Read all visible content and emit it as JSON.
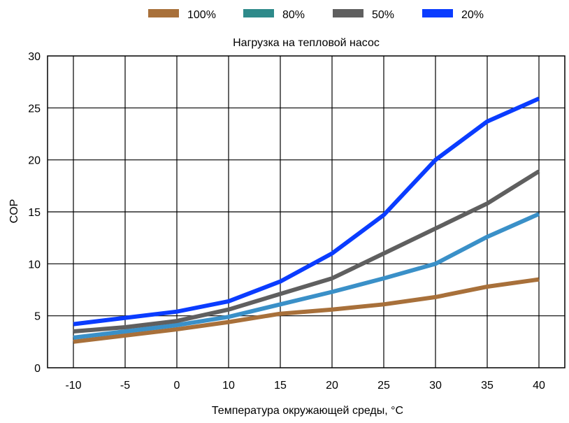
{
  "chart_data": {
    "type": "line",
    "title": "",
    "subtitle": "Нагрузка на тепловой насос",
    "xlabel": "Температура окружающей среды, °C",
    "ylabel": "COP",
    "x": [
      -10,
      -5,
      0,
      10,
      15,
      20,
      25,
      30,
      35,
      40
    ],
    "x_ticks": [
      "-10",
      "-5",
      "0",
      "10",
      "15",
      "20",
      "25",
      "30",
      "35",
      "40"
    ],
    "y_ticks": [
      "0",
      "5",
      "10",
      "15",
      "20",
      "25",
      "30"
    ],
    "ylim": [
      0,
      30
    ],
    "grid": true,
    "legend_position": "top",
    "series": [
      {
        "name": "100%",
        "color": "#a8703a",
        "line_color": "#a8703a",
        "values": [
          2.5,
          3.1,
          3.7,
          4.4,
          5.2,
          5.6,
          6.1,
          6.8,
          7.8,
          8.5
        ]
      },
      {
        "name": "80%",
        "color": "#2e8a8a",
        "line_color": "#3a90c8",
        "values": [
          2.9,
          3.5,
          4.1,
          4.9,
          6.1,
          7.3,
          8.6,
          10.0,
          12.6,
          14.8
        ]
      },
      {
        "name": "50%",
        "color": "#5f5f5f",
        "line_color": "#5f5f5f",
        "values": [
          3.5,
          3.9,
          4.5,
          5.6,
          7.1,
          8.6,
          11.0,
          13.4,
          15.8,
          18.9
        ]
      },
      {
        "name": "20%",
        "color": "#0a3cff",
        "line_color": "#0a3cff",
        "values": [
          4.2,
          4.8,
          5.4,
          6.4,
          8.3,
          11.0,
          14.7,
          20.0,
          23.7,
          25.9
        ]
      }
    ]
  }
}
